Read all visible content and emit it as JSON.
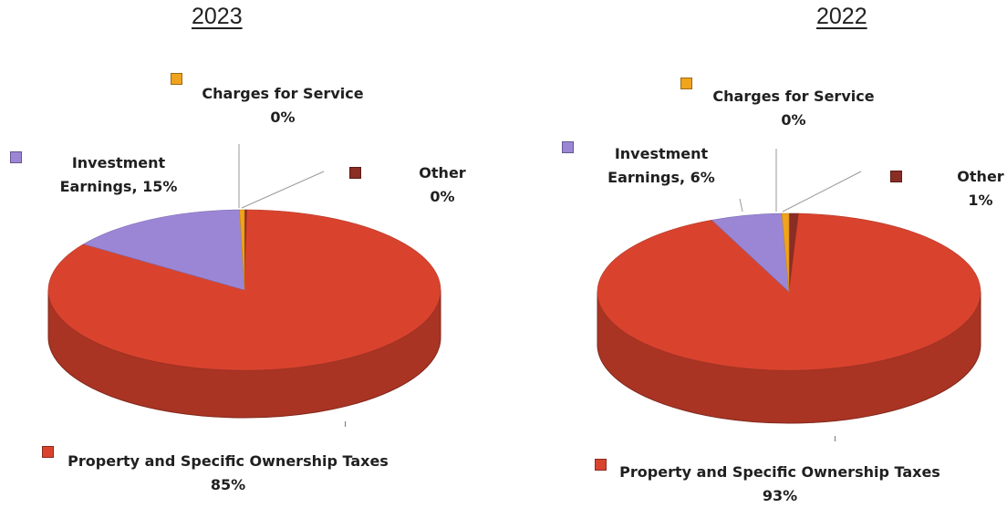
{
  "chart_data": [
    {
      "type": "pie",
      "title": "2023",
      "slices": [
        {
          "label": "Property and Specific Ownership Taxes",
          "pct_label": "85%",
          "value": 85,
          "color": "#d9432e"
        },
        {
          "label": "Investment Earnings, 15%",
          "pct_label": "",
          "value": 15,
          "color": "#9b86d6"
        },
        {
          "label": "Charges for Service",
          "pct_label": "0%",
          "value": 0.4,
          "color": "#f0a31c"
        },
        {
          "label": "Other",
          "pct_label": "0%",
          "value": 0.2,
          "color": "#8a2d24"
        }
      ]
    },
    {
      "type": "pie",
      "title": "2022",
      "slices": [
        {
          "label": "Property and Specific Ownership Taxes",
          "pct_label": "93%",
          "value": 92.6,
          "color": "#d9432e"
        },
        {
          "label": "Investment Earnings, 6%",
          "pct_label": "",
          "value": 6,
          "color": "#9b86d6"
        },
        {
          "label": "Charges for Service",
          "pct_label": "0%",
          "value": 0.6,
          "color": "#f0a31c"
        },
        {
          "label": "Other",
          "pct_label": "1%",
          "value": 0.8,
          "color": "#8a2d24"
        }
      ]
    }
  ]
}
